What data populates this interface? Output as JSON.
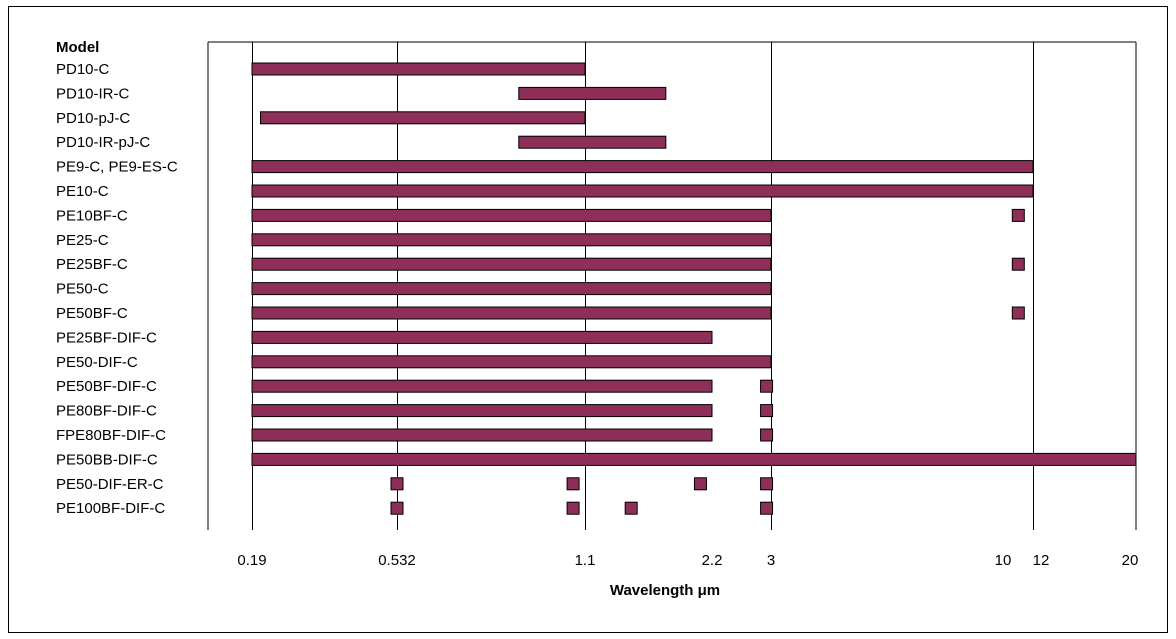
{
  "chart_data": {
    "type": "bar",
    "header": "Model",
    "xlabel": "Wavelength μm",
    "bar_color": "#8E2F5A",
    "x_ticks": [
      "0.19",
      "0.532",
      "1.1",
      "2.2",
      "3",
      "10",
      "12",
      "20"
    ],
    "gridlines_at": [
      "0.19",
      "0.532",
      "1.1",
      "3",
      "12"
    ],
    "models": [
      {
        "name": "PD10-C",
        "ranges": [
          [
            "0.19",
            "1.1"
          ]
        ],
        "points": []
      },
      {
        "name": "PD10-IR-C",
        "ranges": [
          [
            "0.9",
            "1.8"
          ]
        ],
        "points": []
      },
      {
        "name": "PD10-pJ-C",
        "ranges": [
          [
            "0.21",
            "1.1"
          ]
        ],
        "points": []
      },
      {
        "name": "PD10-IR-pJ-C",
        "ranges": [
          [
            "0.9",
            "1.8"
          ]
        ],
        "points": []
      },
      {
        "name": "PE9-C, PE9-ES-C",
        "ranges": [
          [
            "0.19",
            "12"
          ]
        ],
        "points": []
      },
      {
        "name": "PE10-C",
        "ranges": [
          [
            "0.19",
            "12"
          ]
        ],
        "points": []
      },
      {
        "name": "PE10BF-C",
        "ranges": [
          [
            "0.19",
            "3"
          ]
        ],
        "points": [
          "10.6"
        ]
      },
      {
        "name": "PE25-C",
        "ranges": [
          [
            "0.19",
            "3"
          ]
        ],
        "points": []
      },
      {
        "name": "PE25BF-C",
        "ranges": [
          [
            "0.19",
            "3"
          ]
        ],
        "points": [
          "10.6"
        ]
      },
      {
        "name": "PE50-C",
        "ranges": [
          [
            "0.19",
            "3"
          ]
        ],
        "points": []
      },
      {
        "name": "PE50BF-C",
        "ranges": [
          [
            "0.19",
            "3"
          ]
        ],
        "points": [
          "10.6"
        ]
      },
      {
        "name": "PE25BF-DIF-C",
        "ranges": [
          [
            "0.19",
            "2.2"
          ]
        ],
        "points": []
      },
      {
        "name": "PE50-DIF-C",
        "ranges": [
          [
            "0.19",
            "3"
          ]
        ],
        "points": []
      },
      {
        "name": "PE50BF-DIF-C",
        "ranges": [
          [
            "0.19",
            "2.2"
          ]
        ],
        "points": [
          "2.94"
        ]
      },
      {
        "name": "PE80BF-DIF-C",
        "ranges": [
          [
            "0.19",
            "2.2"
          ]
        ],
        "points": [
          "2.94"
        ]
      },
      {
        "name": "FPE80BF-DIF-C",
        "ranges": [
          [
            "0.19",
            "2.2"
          ]
        ],
        "points": [
          "2.94"
        ]
      },
      {
        "name": "PE50BB-DIF-C",
        "ranges": [
          [
            "0.19",
            "20"
          ]
        ],
        "points": []
      },
      {
        "name": "PE50-DIF-ER-C",
        "ranges": [],
        "points": [
          "0.532",
          "1.064",
          "2.1",
          "2.94"
        ]
      },
      {
        "name": "PE100BF-DIF-C",
        "ranges": [],
        "points": [
          "0.532",
          "1.064",
          "1.5",
          "2.94"
        ]
      }
    ]
  }
}
